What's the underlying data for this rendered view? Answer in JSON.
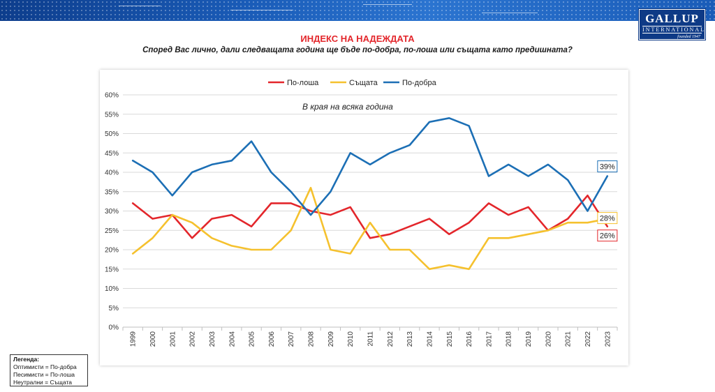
{
  "header": {
    "title": "ИНДЕКС НА НАДЕЖДАТА",
    "subtitle": "Според Вас лично, дали следващата година ще бъде по-добра, по-лоша или същата като предишната?"
  },
  "logo": {
    "brand": "GALLUP",
    "sub": "INTERNATIONAL",
    "founded": "founded 1947"
  },
  "chart_data": {
    "type": "line",
    "categories": [
      "1999",
      "2000",
      "2001",
      "2002",
      "2003",
      "2004",
      "2005",
      "2006",
      "2007",
      "2008",
      "2009",
      "2010",
      "2011",
      "2012",
      "2013",
      "2014",
      "2015",
      "2016",
      "2017",
      "2018",
      "2019",
      "2020",
      "2021",
      "2022",
      "2023"
    ],
    "series": [
      {
        "name": "По-лоша",
        "color": "#e3262b",
        "values": [
          32,
          28,
          29,
          23,
          28,
          29,
          26,
          32,
          32,
          30,
          29,
          31,
          23,
          24,
          26,
          28,
          24,
          27,
          32,
          29,
          31,
          25,
          28,
          34,
          26
        ]
      },
      {
        "name": "Същата",
        "color": "#f5c12e",
        "values": [
          19,
          23,
          29,
          27,
          23,
          21,
          20,
          20,
          25,
          36,
          20,
          19,
          27,
          20,
          20,
          15,
          16,
          15,
          23,
          23,
          24,
          25,
          27,
          27,
          28
        ]
      },
      {
        "name": "По-добра",
        "color": "#1c6fb5",
        "values": [
          43,
          40,
          34,
          40,
          42,
          43,
          48,
          40,
          35,
          29,
          35,
          45,
          42,
          45,
          47,
          53,
          54,
          52,
          39,
          42,
          39,
          42,
          38,
          30,
          39
        ]
      }
    ],
    "y_ticks": [
      "0%",
      "5%",
      "10%",
      "15%",
      "20%",
      "25%",
      "30%",
      "35%",
      "40%",
      "45%",
      "50%",
      "55%",
      "60%"
    ],
    "ylim": [
      0,
      60
    ],
    "annotation": "В края на всяка година",
    "end_labels": {
      "better": "39%",
      "same": "28%",
      "worse": "26%"
    },
    "grid": true,
    "legend_position": "top"
  },
  "legend_box": {
    "heading": "Легенда:",
    "lines": [
      "Оптимисти = По-добра",
      "Песимисти = По-лоша",
      "Неутрални = Същата"
    ]
  }
}
